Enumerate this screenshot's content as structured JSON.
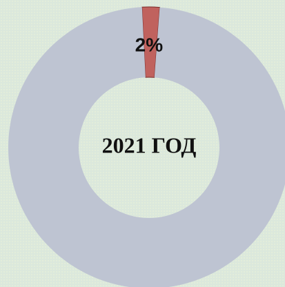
{
  "chart_data": {
    "type": "donut",
    "title": "2021 ГОД",
    "values": [
      2,
      98
    ],
    "value_labels": [
      "2%",
      null
    ],
    "colors": [
      "#c0625e",
      "#bec4d2"
    ]
  }
}
